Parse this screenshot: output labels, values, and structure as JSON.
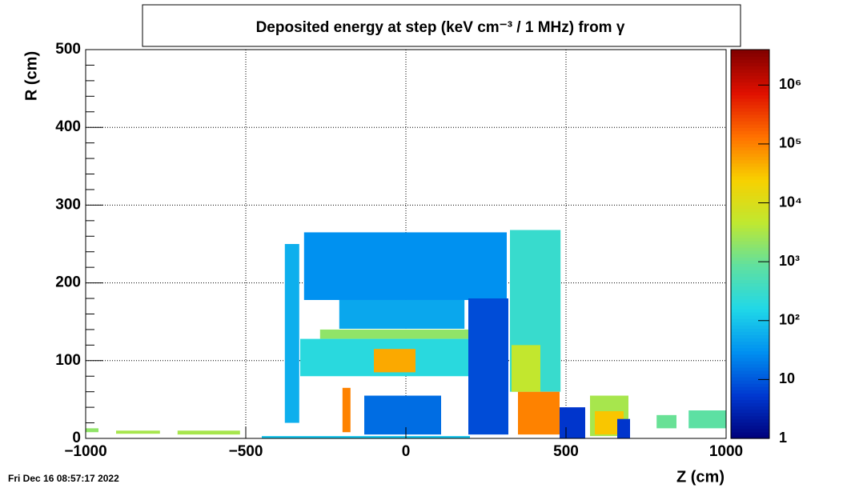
{
  "chart_data": {
    "type": "heatmap",
    "title": "Deposited energy at step (keV cm⁻³ / 1 MHz)  from γ",
    "x_label": "Z (cm)",
    "y_label": "R (cm)",
    "timestamp": "Fri Dec 16 08:57:17 2022",
    "xlim": [
      -1000,
      1000
    ],
    "ylim": [
      0,
      500
    ],
    "xticks": [
      {
        "value": -1000,
        "label": "−1000"
      },
      {
        "value": -500,
        "label": "−500"
      },
      0,
      500,
      1000
    ],
    "yticks": [
      0,
      100,
      200,
      300,
      400,
      500
    ],
    "zlim": [
      1,
      4000000
    ],
    "zlog": true,
    "zticks": [
      1,
      10,
      {
        "value": 100,
        "label": "10²"
      },
      {
        "value": 1000,
        "label": "10³"
      },
      {
        "value": 10000,
        "label": "10⁴"
      },
      {
        "value": 100000,
        "label": "10⁵"
      },
      {
        "value": 1000000,
        "label": "10⁶"
      }
    ],
    "grid": true,
    "colorscale": [
      "#00007a",
      "#0038d0",
      "#0090f0",
      "#20d8e8",
      "#60e0a0",
      "#c0e830",
      "#f8d000",
      "#ff7000",
      "#e01000",
      "#800000"
    ],
    "regions": [
      {
        "z": [
          -450,
          200
        ],
        "r": [
          0,
          3
        ],
        "value": 100
      },
      {
        "z": [
          -318,
          315
        ],
        "r": [
          178,
          265
        ],
        "value": 30
      },
      {
        "z": [
          -378,
          -333
        ],
        "r": [
          20,
          250
        ],
        "value": 60
      },
      {
        "z": [
          325,
          483
        ],
        "r": [
          60,
          268
        ],
        "value": 300
      },
      {
        "z": [
          350,
          480
        ],
        "r": [
          5,
          60
        ],
        "value": 100000
      },
      {
        "z": [
          330,
          420
        ],
        "r": [
          60,
          120
        ],
        "value": 5000
      },
      {
        "z": [
          195,
          320
        ],
        "r": [
          5,
          180
        ],
        "value": 8
      },
      {
        "z": [
          -208,
          183
        ],
        "r": [
          141,
          178
        ],
        "value": 50
      },
      {
        "z": [
          -268,
          195
        ],
        "r": [
          128,
          140
        ],
        "value": 2000
      },
      {
        "z": [
          -330,
          195
        ],
        "r": [
          80,
          128
        ],
        "value": 200
      },
      {
        "z": [
          -100,
          30
        ],
        "r": [
          85,
          115
        ],
        "value": 50000
      },
      {
        "z": [
          -198,
          -173
        ],
        "r": [
          8,
          65
        ],
        "value": 100000
      },
      {
        "z": [
          -130,
          110
        ],
        "r": [
          5,
          55
        ],
        "value": 15
      },
      {
        "z": [
          480,
          560
        ],
        "r": [
          0,
          40
        ],
        "value": 5
      },
      {
        "z": [
          575,
          695
        ],
        "r": [
          3,
          55
        ],
        "value": 3000
      },
      {
        "z": [
          590,
          680
        ],
        "r": [
          5,
          35
        ],
        "value": 30000
      },
      {
        "z": [
          660,
          700
        ],
        "r": [
          0,
          25
        ],
        "value": 5
      },
      {
        "z": [
          783,
          845
        ],
        "r": [
          13,
          30
        ],
        "value": 1000
      },
      {
        "z": [
          883,
          1000
        ],
        "r": [
          13,
          36
        ],
        "value": 800
      },
      {
        "z": [
          -1000,
          -960
        ],
        "r": [
          8,
          13
        ],
        "value": 2000
      },
      {
        "z": [
          -905,
          -768
        ],
        "r": [
          6,
          10
        ],
        "value": 3000
      },
      {
        "z": [
          -713,
          -518
        ],
        "r": [
          5,
          10
        ],
        "value": 3000
      }
    ]
  }
}
